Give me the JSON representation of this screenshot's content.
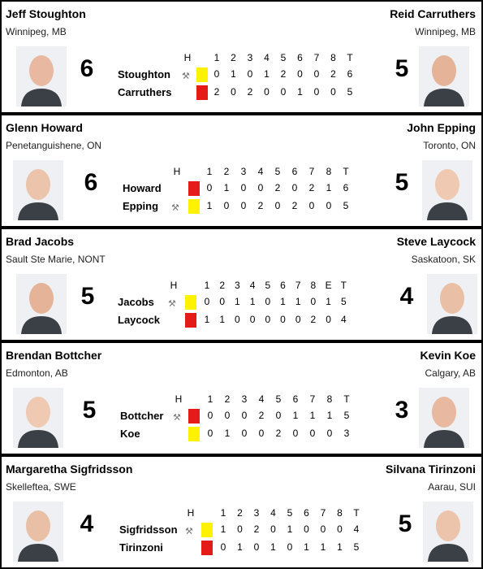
{
  "colors": {
    "red": "#e41b17",
    "yellow": "#fff200",
    "border": "#000000"
  },
  "icons": {
    "hammer": "hammer-icon"
  },
  "games": [
    {
      "left": {
        "name": "Jeff Stoughton",
        "location": "Winnipeg, MB",
        "score": "6",
        "last": "Stoughton",
        "stone": "yellow",
        "hammer": true,
        "ends": [
          "0",
          "1",
          "0",
          "1",
          "2",
          "0",
          "0",
          "2"
        ],
        "total": "6"
      },
      "right": {
        "name": "Reid Carruthers",
        "location": "Winnipeg, MB",
        "score": "5",
        "last": "Carruthers",
        "stone": "red",
        "hammer": false,
        "ends": [
          "2",
          "0",
          "2",
          "0",
          "0",
          "1",
          "0",
          "0"
        ],
        "total": "5"
      },
      "header": [
        "H",
        "1",
        "2",
        "3",
        "4",
        "5",
        "6",
        "7",
        "8",
        "T"
      ]
    },
    {
      "left": {
        "name": "Glenn Howard",
        "location": "Penetanguishene, ON",
        "score": "6",
        "last": "Howard",
        "stone": "red",
        "hammer": false,
        "ends": [
          "0",
          "1",
          "0",
          "0",
          "2",
          "0",
          "2",
          "1"
        ],
        "total": "6"
      },
      "right": {
        "name": "John Epping",
        "location": "Toronto, ON",
        "score": "5",
        "last": "Epping",
        "stone": "yellow",
        "hammer": true,
        "ends": [
          "1",
          "0",
          "0",
          "2",
          "0",
          "2",
          "0",
          "0"
        ],
        "total": "5"
      },
      "header": [
        "H",
        "1",
        "2",
        "3",
        "4",
        "5",
        "6",
        "7",
        "8",
        "T"
      ]
    },
    {
      "left": {
        "name": "Brad Jacobs",
        "location": "Sault Ste Marie, NONT",
        "score": "5",
        "last": "Jacobs",
        "stone": "yellow",
        "hammer": true,
        "ends": [
          "0",
          "0",
          "1",
          "1",
          "0",
          "1",
          "1",
          "0",
          "1"
        ],
        "total": "5"
      },
      "right": {
        "name": "Steve Laycock",
        "location": "Saskatoon, SK",
        "score": "4",
        "last": "Laycock",
        "stone": "red",
        "hammer": false,
        "ends": [
          "1",
          "1",
          "0",
          "0",
          "0",
          "0",
          "0",
          "2",
          "0"
        ],
        "total": "4"
      },
      "header": [
        "H",
        "1",
        "2",
        "3",
        "4",
        "5",
        "6",
        "7",
        "8",
        "E",
        "T"
      ]
    },
    {
      "left": {
        "name": "Brendan Bottcher",
        "location": "Edmonton, AB",
        "score": "5",
        "last": "Bottcher",
        "stone": "red",
        "hammer": true,
        "ends": [
          "0",
          "0",
          "0",
          "2",
          "0",
          "1",
          "1",
          "1"
        ],
        "total": "5"
      },
      "right": {
        "name": "Kevin Koe",
        "location": "Calgary, AB",
        "score": "3",
        "last": "Koe",
        "stone": "yellow",
        "hammer": false,
        "ends": [
          "0",
          "1",
          "0",
          "0",
          "2",
          "0",
          "0",
          "0"
        ],
        "total": "3"
      },
      "header": [
        "H",
        "1",
        "2",
        "3",
        "4",
        "5",
        "6",
        "7",
        "8",
        "T"
      ]
    },
    {
      "left": {
        "name": "Margaretha Sigfridsson",
        "location": "Skelleftea, SWE",
        "score": "4",
        "last": "Sigfridsson",
        "stone": "yellow",
        "hammer": true,
        "ends": [
          "1",
          "0",
          "2",
          "0",
          "1",
          "0",
          "0",
          "0"
        ],
        "total": "4"
      },
      "right": {
        "name": "Silvana Tirinzoni",
        "location": "Aarau, SUI",
        "score": "5",
        "last": "Tirinzoni",
        "stone": "red",
        "hammer": false,
        "ends": [
          "0",
          "1",
          "0",
          "1",
          "0",
          "1",
          "1",
          "1"
        ],
        "total": "5"
      },
      "header": [
        "H",
        "1",
        "2",
        "3",
        "4",
        "5",
        "6",
        "7",
        "8",
        "T"
      ]
    }
  ]
}
